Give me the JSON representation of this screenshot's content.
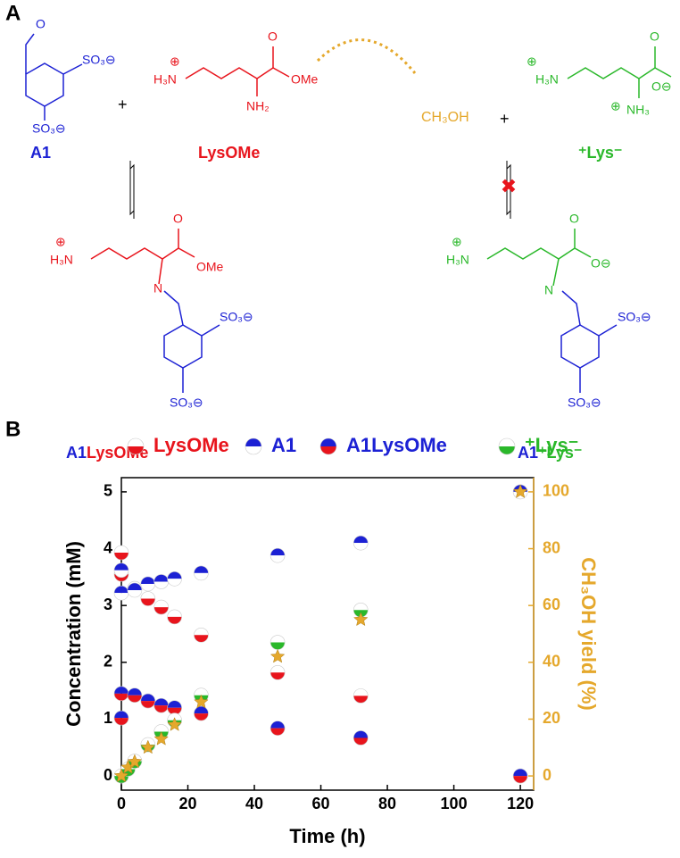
{
  "panel_labels": [
    "A",
    "B"
  ],
  "scheme": {
    "compounds": [
      "A1",
      [
        "LysOMe"
      ],
      "CH₃OH",
      "⁺Lys⁻",
      [
        "A1",
        "LysOMe"
      ],
      [
        "A1",
        "⁺Lys⁻"
      ]
    ],
    "plus": [
      "+",
      "+"
    ],
    "atoms": [
      "O",
      "SO₃⊖",
      "SO₃⊖",
      "⊕",
      "H₃N",
      "O",
      "OMe",
      "NH₂",
      "⊕",
      "H₃N",
      "O",
      "O⊖",
      "⊕",
      "NH₃",
      "⊕",
      "H₃N",
      "O",
      "OMe",
      "N",
      "SO₃⊖",
      "SO₃⊖",
      "⊕",
      "H₃N",
      "O",
      "O⊖",
      "N",
      "SO₃⊖",
      "SO₃⊖"
    ]
  },
  "chart_data": {
    "type": "scatter",
    "xlabel": "Time (h)",
    "ylabel": "Concentration (mM)",
    "y2label": "CH₃OH yield (%)",
    "xlim": [
      0,
      124
    ],
    "xticks": [
      0,
      20,
      40,
      60,
      80,
      100,
      120
    ],
    "ylim": [
      -0.25,
      5.25
    ],
    "yticks": [
      0,
      1,
      2,
      3,
      4,
      5
    ],
    "y2lim": [
      -5,
      105
    ],
    "y2ticks": [
      0,
      20,
      40,
      60,
      80,
      100
    ],
    "y2color": "#e5a82c",
    "series": [
      {
        "name": "LysOMe",
        "color": "#e8141c",
        "fill": [
          "#ffffff",
          "#e8141c"
        ],
        "x": [
          0,
          0,
          4,
          8,
          12,
          16,
          24,
          47,
          72
        ],
        "values": [
          3.93,
          3.55,
          3.3,
          3.12,
          2.97,
          2.8,
          2.48,
          1.82,
          1.41
        ]
      },
      {
        "name": "A1",
        "color": "#1c21d4",
        "fill": [
          "#1c21d4",
          "#ffffff"
        ],
        "x": [
          0,
          0,
          4,
          8,
          12,
          16,
          24,
          47,
          72,
          120
        ],
        "values": [
          3.62,
          3.22,
          3.27,
          3.38,
          3.42,
          3.47,
          3.57,
          3.88,
          4.1,
          5.0
        ]
      },
      {
        "name": "A1LysOMe",
        "color": "#1c21d4",
        "fill": [
          "#1c21d4",
          "#e8141c"
        ],
        "x": [
          0,
          0,
          4,
          8,
          12,
          16,
          24,
          47,
          72,
          120
        ],
        "values": [
          1.45,
          1.02,
          1.42,
          1.32,
          1.24,
          1.2,
          1.1,
          0.84,
          0.67,
          0
        ]
      },
      {
        "name": "⁺Lys⁻",
        "color": "#2ab82a",
        "fill": [
          "#ffffff",
          "#2ab82a"
        ],
        "x": [
          0,
          2,
          4,
          8,
          12,
          16,
          24,
          47,
          72
        ],
        "values": [
          0,
          0.12,
          0.26,
          0.55,
          0.78,
          0.98,
          1.42,
          2.35,
          2.92
        ]
      },
      {
        "marker": "star",
        "color": "#e5a82c",
        "axis": "y2",
        "x": [
          0,
          2,
          4,
          8,
          12,
          16,
          24,
          47,
          72,
          120
        ],
        "values": [
          0,
          3,
          5,
          10,
          13,
          18,
          26,
          42,
          55,
          100
        ]
      }
    ]
  }
}
